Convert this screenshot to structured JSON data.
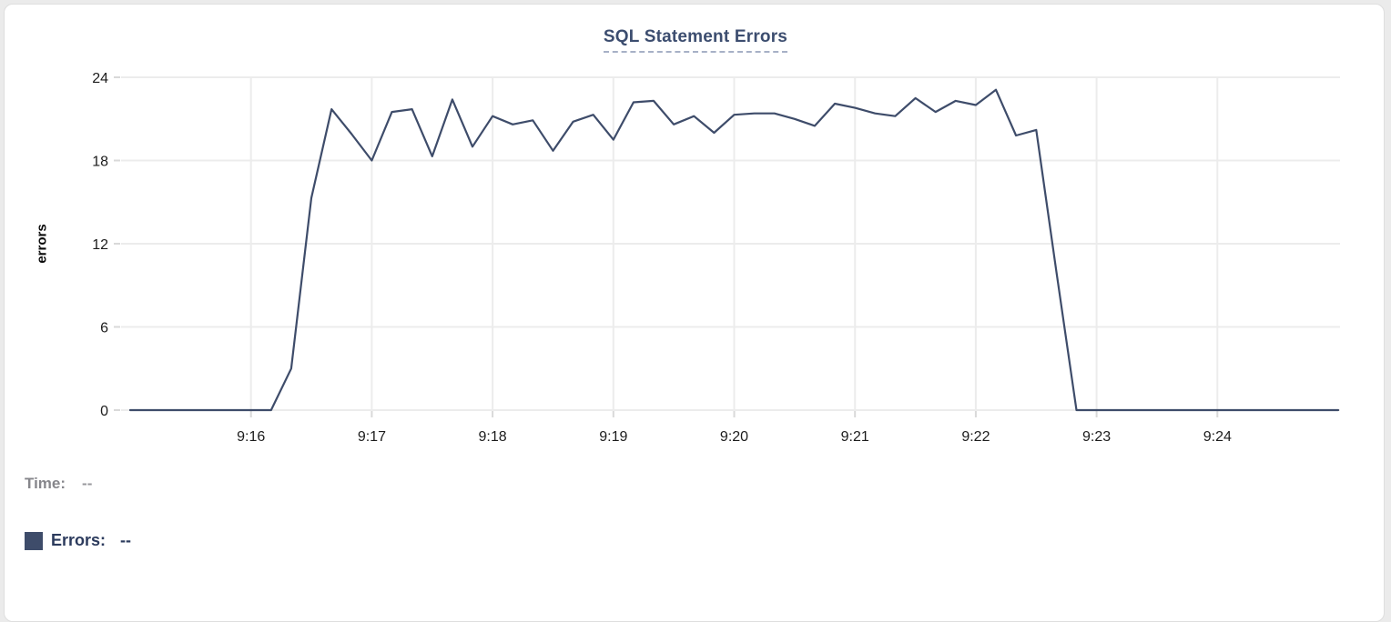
{
  "chart_data": {
    "type": "line",
    "title": "SQL Statement Errors",
    "xlabel": "",
    "ylabel": "errors",
    "ylim": [
      0,
      24
    ],
    "y_ticks": [
      0,
      6,
      12,
      18,
      24
    ],
    "x_ticks": [
      "9:16",
      "9:17",
      "9:18",
      "9:19",
      "9:20",
      "9:21",
      "9:22",
      "9:23",
      "9:24"
    ],
    "x_range": [
      "9:15:00",
      "9:25:00"
    ],
    "grid": true,
    "legend_position": "bottom-left",
    "series": [
      {
        "name": "Errors",
        "color": "#3e4c6a",
        "x": [
          "9:15:00",
          "9:15:10",
          "9:15:20",
          "9:15:30",
          "9:15:40",
          "9:15:50",
          "9:16:00",
          "9:16:10",
          "9:16:20",
          "9:16:30",
          "9:16:40",
          "9:16:50",
          "9:17:00",
          "9:17:10",
          "9:17:20",
          "9:17:30",
          "9:17:40",
          "9:17:50",
          "9:18:00",
          "9:18:10",
          "9:18:20",
          "9:18:30",
          "9:18:40",
          "9:18:50",
          "9:19:00",
          "9:19:10",
          "9:19:20",
          "9:19:30",
          "9:19:40",
          "9:19:50",
          "9:20:00",
          "9:20:10",
          "9:20:20",
          "9:20:30",
          "9:20:40",
          "9:20:50",
          "9:21:00",
          "9:21:10",
          "9:21:20",
          "9:21:30",
          "9:21:40",
          "9:21:50",
          "9:22:00",
          "9:22:10",
          "9:22:20",
          "9:22:30",
          "9:22:40",
          "9:22:50",
          "9:23:00",
          "9:23:10",
          "9:23:20",
          "9:23:30",
          "9:23:40",
          "9:23:50",
          "9:24:00",
          "9:24:10",
          "9:24:20",
          "9:24:30",
          "9:24:40",
          "9:24:50",
          "9:25:00"
        ],
        "values": [
          0,
          0,
          0,
          0,
          0,
          0,
          0,
          0,
          3,
          15.3,
          21.7,
          19.9,
          18,
          21.5,
          21.7,
          18.3,
          22.4,
          19,
          21.2,
          20.6,
          20.9,
          18.7,
          20.8,
          21.3,
          19.5,
          22.2,
          22.3,
          20.6,
          21.2,
          20,
          21.3,
          21.4,
          21.4,
          21,
          20.5,
          22.1,
          21.8,
          21.4,
          21.2,
          22.5,
          21.5,
          22.3,
          22,
          23.1,
          19.8,
          20.2,
          10,
          0,
          0,
          0,
          0,
          0,
          0,
          0,
          0,
          0,
          0,
          0,
          0,
          0,
          0
        ]
      }
    ]
  },
  "readout": {
    "time_label": "Time:",
    "time_value": "--",
    "errors_label": "Errors:",
    "errors_value": "--"
  },
  "colors": {
    "line": "#3e4c6a",
    "title": "#3c4d6f",
    "title_underline": "#a7b1c6",
    "gridline": "#ececec",
    "tick_mark": "#d9d9d9",
    "tick_text": "#1c1c1c",
    "muted_text": "#86868b",
    "accent_text": "#2c3b5d",
    "card_border": "#dedede",
    "card_bg": "#ffffff"
  }
}
